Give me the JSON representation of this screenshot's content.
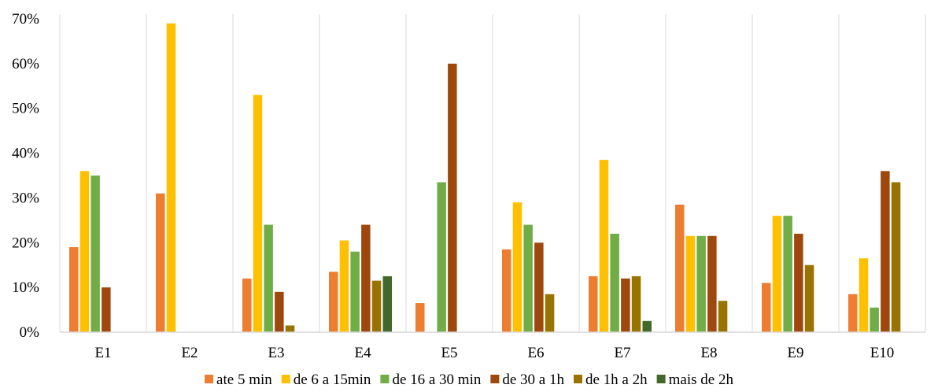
{
  "chart_data": {
    "type": "bar",
    "categories": [
      "E1",
      "E2",
      "E3",
      "E4",
      "E5",
      "E6",
      "E7",
      "E8",
      "E9",
      "E10"
    ],
    "series": [
      {
        "name": "ate 5 min",
        "color": "#ED7D31",
        "values": [
          19,
          31,
          12,
          13.5,
          6.5,
          18.5,
          12.5,
          28.5,
          11,
          8.5
        ]
      },
      {
        "name": "de 6 a 15min",
        "color": "#FFC000",
        "values": [
          36,
          69,
          53,
          20.5,
          0,
          29,
          38.5,
          21.5,
          26,
          16.5
        ]
      },
      {
        "name": "de 16 a 30 min",
        "color": "#70AD47",
        "values": [
          35,
          0,
          24,
          18,
          33.5,
          24,
          22,
          21.5,
          26,
          5.5
        ]
      },
      {
        "name": "de 30 a 1h",
        "color": "#9E480E",
        "values": [
          10,
          0,
          9,
          24,
          60,
          20,
          12,
          21.5,
          22,
          36
        ]
      },
      {
        "name": "de 1h a 2h",
        "color": "#997300",
        "values": [
          0,
          0,
          1.5,
          11.5,
          0,
          8.5,
          12.5,
          7,
          15,
          33.5
        ]
      },
      {
        "name": "mais de 2h",
        "color": "#43682B",
        "values": [
          0,
          0,
          0,
          12.5,
          0,
          0,
          2.5,
          0,
          0,
          0
        ]
      }
    ],
    "y_ticks": [
      "0%",
      "10%",
      "20%",
      "30%",
      "40%",
      "50%",
      "60%",
      "70%"
    ],
    "ylim": [
      0,
      70
    ],
    "legend_position": "bottom",
    "grid": "vertical category separators"
  }
}
